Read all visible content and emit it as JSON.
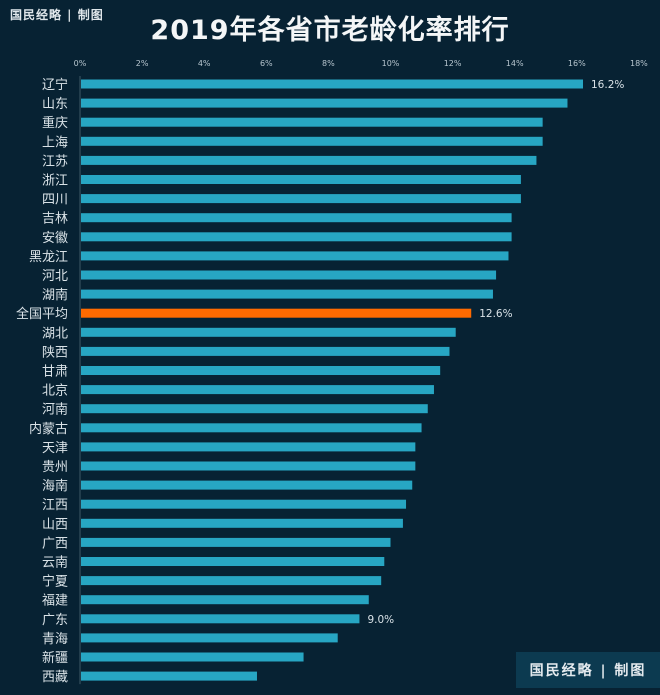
{
  "header": {
    "watermark_top": "国民经略 | 制图",
    "watermark_bottom": "国民经略 | 制图"
  },
  "colors": {
    "background": "#072233",
    "bar": "#27a6c3",
    "highlight": "#ff6a00"
  },
  "chart_data": {
    "type": "bar",
    "orientation": "horizontal",
    "title": "2019年各省市老龄化率排行",
    "xlabel": "",
    "ylabel": "",
    "xlim": [
      0,
      18
    ],
    "xticks": [
      "0%",
      "2%",
      "4%",
      "6%",
      "8%",
      "10%",
      "12%",
      "14%",
      "16%",
      "18%"
    ],
    "xtick_values": [
      0,
      2,
      4,
      6,
      8,
      10,
      12,
      14,
      16,
      18
    ],
    "axis_position": "top",
    "grid": false,
    "unit": "%",
    "highlight_category": "全国平均",
    "categories": [
      "辽宁",
      "山东",
      "重庆",
      "上海",
      "江苏",
      "浙江",
      "四川",
      "吉林",
      "安徽",
      "黑龙江",
      "河北",
      "湖南",
      "全国平均",
      "湖北",
      "陕西",
      "甘肃",
      "北京",
      "河南",
      "内蒙古",
      "天津",
      "贵州",
      "海南",
      "江西",
      "山西",
      "广西",
      "云南",
      "宁夏",
      "福建",
      "广东",
      "青海",
      "新疆",
      "西藏"
    ],
    "values": [
      16.2,
      15.7,
      14.9,
      14.9,
      14.7,
      14.2,
      14.2,
      13.9,
      13.9,
      13.8,
      13.4,
      13.3,
      12.6,
      12.1,
      11.9,
      11.6,
      11.4,
      11.2,
      11.0,
      10.8,
      10.8,
      10.7,
      10.5,
      10.4,
      10.0,
      9.8,
      9.7,
      9.3,
      9.0,
      8.3,
      7.2,
      5.7
    ],
    "data_labels": [
      {
        "category": "辽宁",
        "text": "16.2%"
      },
      {
        "category": "全国平均",
        "text": "12.6%"
      },
      {
        "category": "广东",
        "text": "9.0%"
      }
    ]
  }
}
